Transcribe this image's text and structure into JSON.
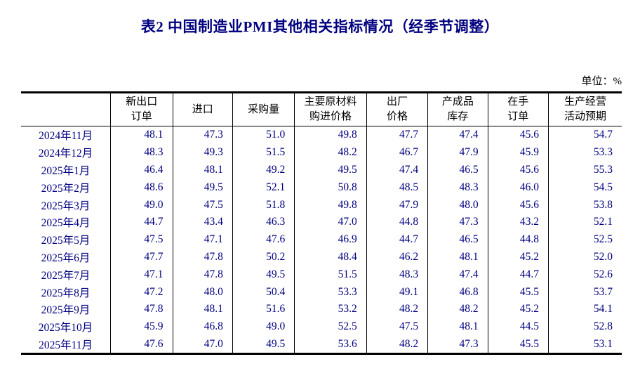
{
  "title": "表2 中国制造业PMI其他相关指标情况（经季节调整）",
  "unit_label": "单位：%",
  "colors": {
    "title_text": "#000080",
    "data_text": "#000080",
    "header_text": "#000000",
    "border": "#000000",
    "background": "#ffffff"
  },
  "table": {
    "corner_label": "",
    "headers": [
      "新出口\n订单",
      "进口",
      "采购量",
      "主要原材料\n购进价格",
      "出厂\n价格",
      "产成品\n库存",
      "在手\n订单",
      "生产经营\n活动预期"
    ],
    "rows": [
      {
        "label": "2024年11月",
        "values": [
          "48.1",
          "47.3",
          "51.0",
          "49.8",
          "47.7",
          "47.4",
          "45.6",
          "54.7"
        ]
      },
      {
        "label": "2024年12月",
        "values": [
          "48.3",
          "49.3",
          "51.5",
          "48.2",
          "46.7",
          "47.9",
          "45.9",
          "53.3"
        ]
      },
      {
        "label": "2025年1月",
        "values": [
          "46.4",
          "48.1",
          "49.2",
          "49.5",
          "47.4",
          "46.5",
          "45.6",
          "55.3"
        ]
      },
      {
        "label": "2025年2月",
        "values": [
          "48.6",
          "49.5",
          "52.1",
          "50.8",
          "48.5",
          "48.3",
          "46.0",
          "54.5"
        ]
      },
      {
        "label": "2025年3月",
        "values": [
          "49.0",
          "47.5",
          "51.8",
          "49.8",
          "47.9",
          "48.0",
          "45.6",
          "53.8"
        ]
      },
      {
        "label": "2025年4月",
        "values": [
          "44.7",
          "43.4",
          "46.3",
          "47.0",
          "44.8",
          "47.3",
          "43.2",
          "52.1"
        ]
      },
      {
        "label": "2025年5月",
        "values": [
          "47.5",
          "47.1",
          "47.6",
          "46.9",
          "44.7",
          "46.5",
          "44.8",
          "52.5"
        ]
      },
      {
        "label": "2025年6月",
        "values": [
          "47.7",
          "47.8",
          "50.2",
          "48.4",
          "46.2",
          "48.1",
          "45.2",
          "52.0"
        ]
      },
      {
        "label": "2025年7月",
        "values": [
          "47.1",
          "47.8",
          "49.5",
          "51.5",
          "48.3",
          "47.4",
          "44.7",
          "52.6"
        ]
      },
      {
        "label": "2025年8月",
        "values": [
          "47.2",
          "48.0",
          "50.4",
          "53.3",
          "49.1",
          "46.8",
          "45.5",
          "53.7"
        ]
      },
      {
        "label": "2025年9月",
        "values": [
          "47.8",
          "48.1",
          "51.6",
          "53.2",
          "48.2",
          "48.2",
          "45.2",
          "54.1"
        ]
      },
      {
        "label": "2025年10月",
        "values": [
          "45.9",
          "46.8",
          "49.0",
          "52.5",
          "47.5",
          "48.1",
          "44.5",
          "52.8"
        ]
      },
      {
        "label": "2025年11月",
        "values": [
          "47.6",
          "47.0",
          "49.5",
          "53.6",
          "48.2",
          "47.3",
          "45.5",
          "53.1"
        ]
      }
    ]
  }
}
